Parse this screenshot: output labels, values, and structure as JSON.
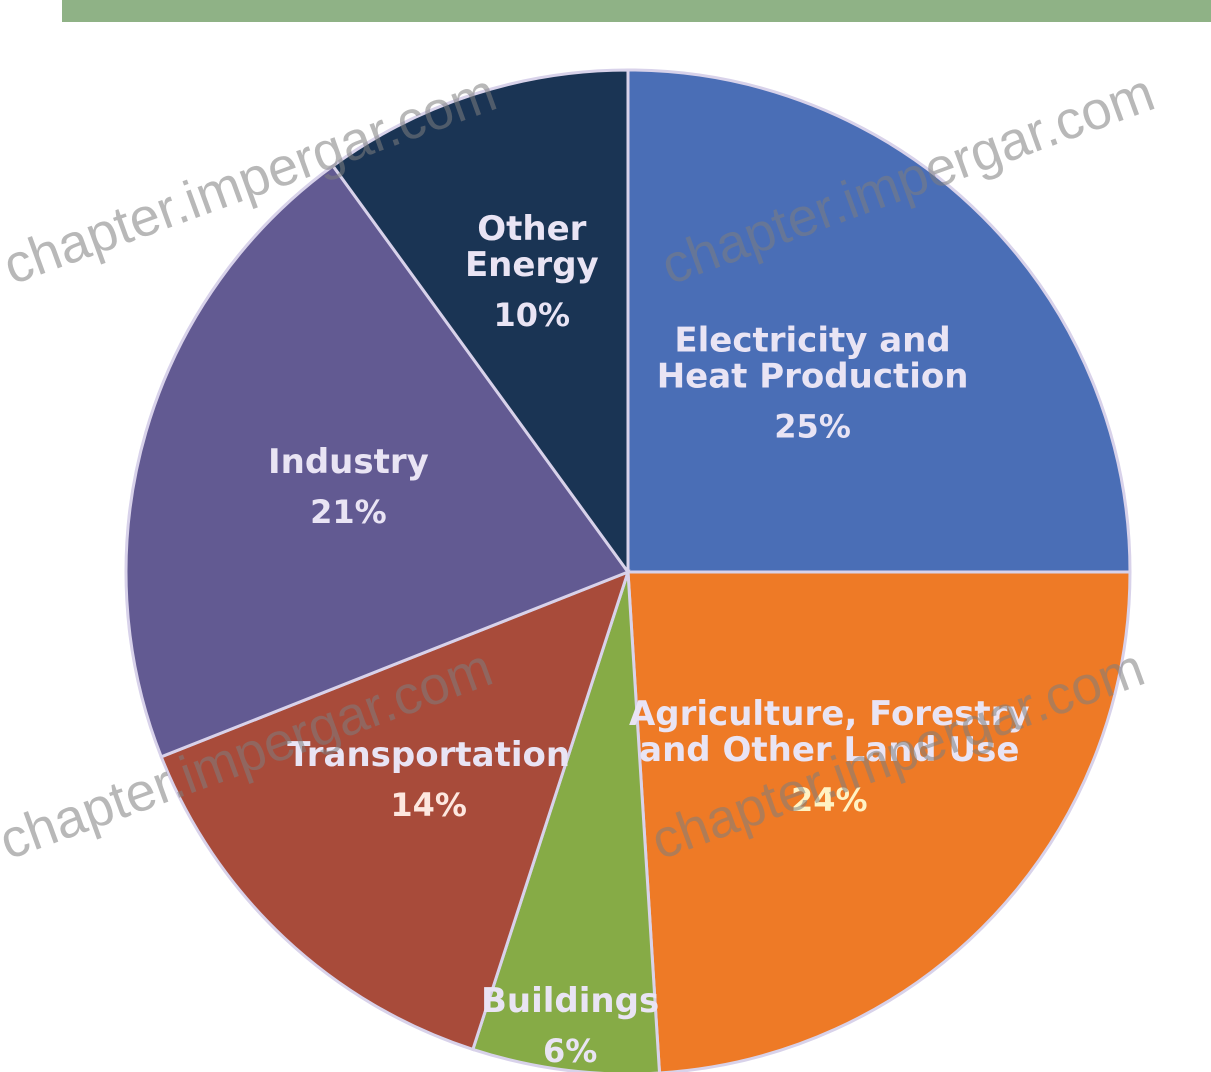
{
  "chart_data": {
    "type": "pie",
    "title": "",
    "slices": [
      {
        "label": "Electricity and Heat Production",
        "lines": [
          "Electricity and",
          "Heat Production"
        ],
        "value": 25,
        "value_label": "25%",
        "color": "#4a6eb6"
      },
      {
        "label": "Agriculture, Forestry and Other Land Use",
        "lines": [
          "Agriculture, Forestry",
          "and Other Land Use"
        ],
        "value": 24,
        "value_label": "24%",
        "color": "#ee7a26"
      },
      {
        "label": "Buildings",
        "lines": [
          "Buildings"
        ],
        "value": 6,
        "value_label": "6%",
        "color": "#86ab46"
      },
      {
        "label": "Transportation",
        "lines": [
          "Transportation"
        ],
        "value": 14,
        "value_label": "14%",
        "color": "#a84b3a"
      },
      {
        "label": "Industry",
        "lines": [
          "Industry"
        ],
        "value": 21,
        "value_label": "21%",
        "color": "#625a92"
      },
      {
        "label": "Other Energy",
        "lines": [
          "Other",
          "Energy"
        ],
        "value": 10,
        "value_label": "10%",
        "color": "#1a3454"
      }
    ],
    "start_angle_deg": 0,
    "direction": "clockwise",
    "slice_border_color": "#d8d2ea"
  },
  "header_bar_color": "#8fb286",
  "watermark": {
    "text": "chapter.impergar.com",
    "color": "#7d7d7d"
  }
}
